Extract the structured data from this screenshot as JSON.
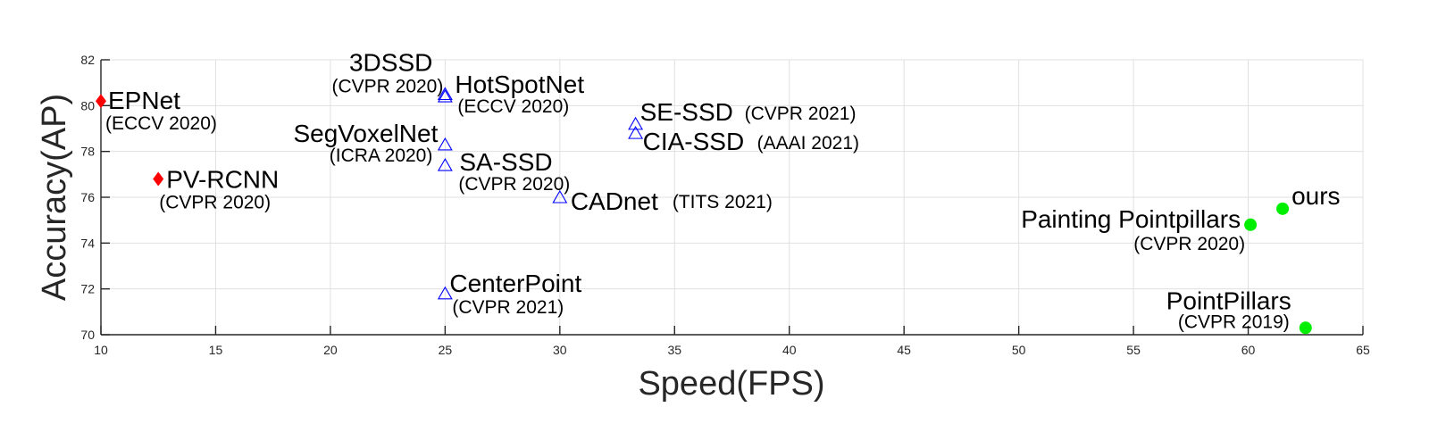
{
  "chart_data": {
    "type": "scatter",
    "xlabel": "Speed(FPS)",
    "ylabel": "Accuracy(AP)",
    "xlim": [
      10,
      65
    ],
    "ylim": [
      70,
      82
    ],
    "xticks": [
      10,
      15,
      20,
      25,
      30,
      35,
      40,
      45,
      50,
      55,
      60,
      65
    ],
    "yticks": [
      70,
      72,
      74,
      76,
      78,
      80,
      82
    ],
    "grid": true,
    "marker_colors": {
      "diamond": "#ff0000",
      "triangle": "#0000ff",
      "circle": "#00ee00"
    },
    "points": [
      {
        "name": "EPNet",
        "venue": "(ECCV 2020)",
        "x": 10.0,
        "y": 80.2,
        "marker": "diamond"
      },
      {
        "name": "PV-RCNN",
        "venue": "(CVPR 2020)",
        "x": 12.5,
        "y": 76.8,
        "marker": "diamond"
      },
      {
        "name": "3DSSD",
        "venue": "(CVPR 2020)",
        "x": 25.0,
        "y": 80.5,
        "marker": "triangle"
      },
      {
        "name": "HotSpotNet",
        "venue": "(ECCV 2020)",
        "x": 25.0,
        "y": 80.4,
        "marker": "triangle"
      },
      {
        "name": "SegVoxelNet",
        "venue": "(ICRA 2020)",
        "x": 25.0,
        "y": 78.3,
        "marker": "triangle"
      },
      {
        "name": "SA-SSD",
        "venue": "(CVPR 2020)",
        "x": 25.0,
        "y": 77.4,
        "marker": "triangle"
      },
      {
        "name": "CenterPoint",
        "venue": "(CVPR 2021)",
        "x": 25.0,
        "y": 71.8,
        "marker": "triangle"
      },
      {
        "name": "CADnet",
        "venue": "(TITS 2021)",
        "x": 30.0,
        "y": 76.0,
        "marker": "triangle"
      },
      {
        "name": "SE-SSD",
        "venue": "(CVPR 2021)",
        "x": 33.3,
        "y": 79.2,
        "marker": "triangle"
      },
      {
        "name": "CIA-SSD",
        "venue": "(AAAI 2021)",
        "x": 33.3,
        "y": 78.8,
        "marker": "triangle"
      },
      {
        "name": "Painting Pointpillars",
        "venue": "(CVPR 2020)",
        "x": 60.1,
        "y": 74.8,
        "marker": "circle"
      },
      {
        "name": "ours",
        "venue": "",
        "x": 61.5,
        "y": 75.5,
        "marker": "circle"
      },
      {
        "name": "PointPillars",
        "venue": "(CVPR 2019)",
        "x": 62.5,
        "y": 70.3,
        "marker": "circle"
      }
    ]
  }
}
